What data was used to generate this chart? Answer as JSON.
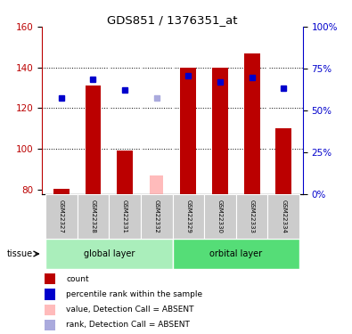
{
  "title": "GDS851 / 1376351_at",
  "samples": [
    "GSM22327",
    "GSM22328",
    "GSM22331",
    "GSM22332",
    "GSM22329",
    "GSM22330",
    "GSM22333",
    "GSM22334"
  ],
  "groups": [
    {
      "label": "global layer",
      "indices": [
        0,
        3
      ]
    },
    {
      "label": "orbital layer",
      "indices": [
        4,
        7
      ]
    }
  ],
  "red_bars": [
    80.5,
    131,
    99,
    null,
    140,
    140,
    147,
    110
  ],
  "pink_bars": [
    null,
    null,
    null,
    87,
    null,
    null,
    null,
    null
  ],
  "blue_dots": [
    125,
    134,
    129,
    null,
    136,
    133,
    135,
    130
  ],
  "lavender_dots": [
    null,
    null,
    null,
    125,
    null,
    null,
    null,
    null
  ],
  "ylim": [
    78,
    160
  ],
  "yticks_red": [
    80,
    100,
    120,
    140,
    160
  ],
  "yticks_blue": [
    0,
    25,
    50,
    75,
    100
  ],
  "blue_axis_labels": [
    "0%",
    "25%",
    "50%",
    "75%",
    "100%"
  ],
  "red_color": "#bb0000",
  "pink_color": "#ffbbbb",
  "blue_color": "#0000cc",
  "lavender_color": "#aaaadd",
  "group_bg_color_1": "#aaeebb",
  "group_bg_color_2": "#55dd77",
  "sample_bg_color": "#cccccc",
  "tissue_label": "tissue",
  "legend_items": [
    {
      "color": "#bb0000",
      "label": "count"
    },
    {
      "color": "#0000cc",
      "label": "percentile rank within the sample"
    },
    {
      "color": "#ffbbbb",
      "label": "value, Detection Call = ABSENT"
    },
    {
      "color": "#aaaadd",
      "label": "rank, Detection Call = ABSENT"
    }
  ]
}
